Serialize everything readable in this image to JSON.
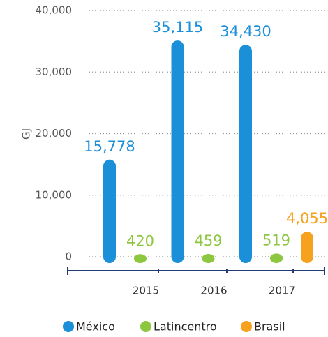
{
  "chart_data": {
    "type": "bar",
    "y_label": "GJ",
    "categories": [
      "2015",
      "2016",
      "2017"
    ],
    "series": [
      {
        "name": "México",
        "color": "#1b8fd8",
        "values": [
          15778,
          35115,
          34430
        ],
        "value_labels": [
          "15,778",
          "35,115",
          "34,430"
        ]
      },
      {
        "name": "Latincentro",
        "color": "#8dc63f",
        "values": [
          420,
          459,
          519
        ]
      },
      {
        "name": "Brasil",
        "color": "#f6a21e",
        "values": [
          null,
          null,
          4055
        ],
        "value_labels": [
          null,
          null,
          "4,055"
        ]
      }
    ],
    "ylim": [
      0,
      40000
    ],
    "yticks": [
      0,
      {
        "value": 10000,
        "label": "10,000"
      },
      {
        "value": 20000,
        "label": "20,000"
      },
      {
        "value": 30000,
        "label": "30,000"
      },
      {
        "value": 40000,
        "label": "40,000"
      }
    ],
    "grid": true
  }
}
